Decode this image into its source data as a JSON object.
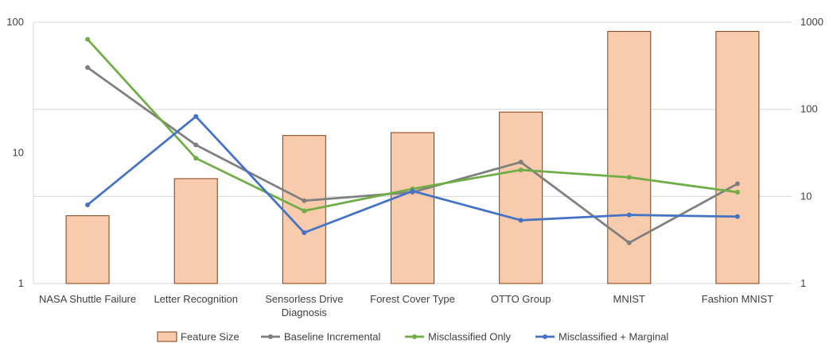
{
  "chart_data": {
    "type": "bar",
    "categories": [
      [
        "NASA Shuttle Failure"
      ],
      [
        "Letter Recognition"
      ],
      [
        "Sensorless Drive",
        "Diagnosis"
      ],
      [
        "Forest Cover Type"
      ],
      [
        "OTTO Group"
      ],
      [
        "MNIST"
      ],
      [
        "Fashion MNIST"
      ]
    ],
    "y_left": {
      "scale": "log",
      "range": [
        1,
        100
      ],
      "ticks": [
        "1",
        "10",
        "100"
      ],
      "tick_values": [
        1,
        10,
        100
      ]
    },
    "y_right": {
      "scale": "log",
      "range": [
        1,
        1000
      ],
      "ticks": [
        "1",
        "10",
        "100",
        "1000"
      ],
      "tick_values": [
        1,
        10,
        100,
        1000
      ]
    },
    "grid": true,
    "legend_position": "bottom",
    "series": [
      {
        "name": "Feature Size",
        "kind": "bar",
        "axis": "right",
        "color": "#F8CBAD",
        "edge": "#843C0C",
        "values": [
          6,
          16,
          50,
          54,
          93,
          784,
          784
        ]
      },
      {
        "name": "Baseline Incremental",
        "kind": "line",
        "axis": "left",
        "color": "#7F7F7F",
        "values": [
          45,
          11.5,
          4.3,
          5.0,
          8.5,
          2.05,
          5.8
        ]
      },
      {
        "name": "Misclassified Only",
        "kind": "line",
        "axis": "left",
        "color": "#70AD47",
        "values": [
          74,
          9.1,
          3.6,
          5.3,
          7.4,
          6.5,
          5.0
        ]
      },
      {
        "name": "Misclassified + Marginal",
        "kind": "line",
        "axis": "left",
        "color": "#4472C4",
        "values": [
          4.0,
          19,
          2.45,
          5.1,
          3.05,
          3.35,
          3.25
        ]
      }
    ]
  }
}
